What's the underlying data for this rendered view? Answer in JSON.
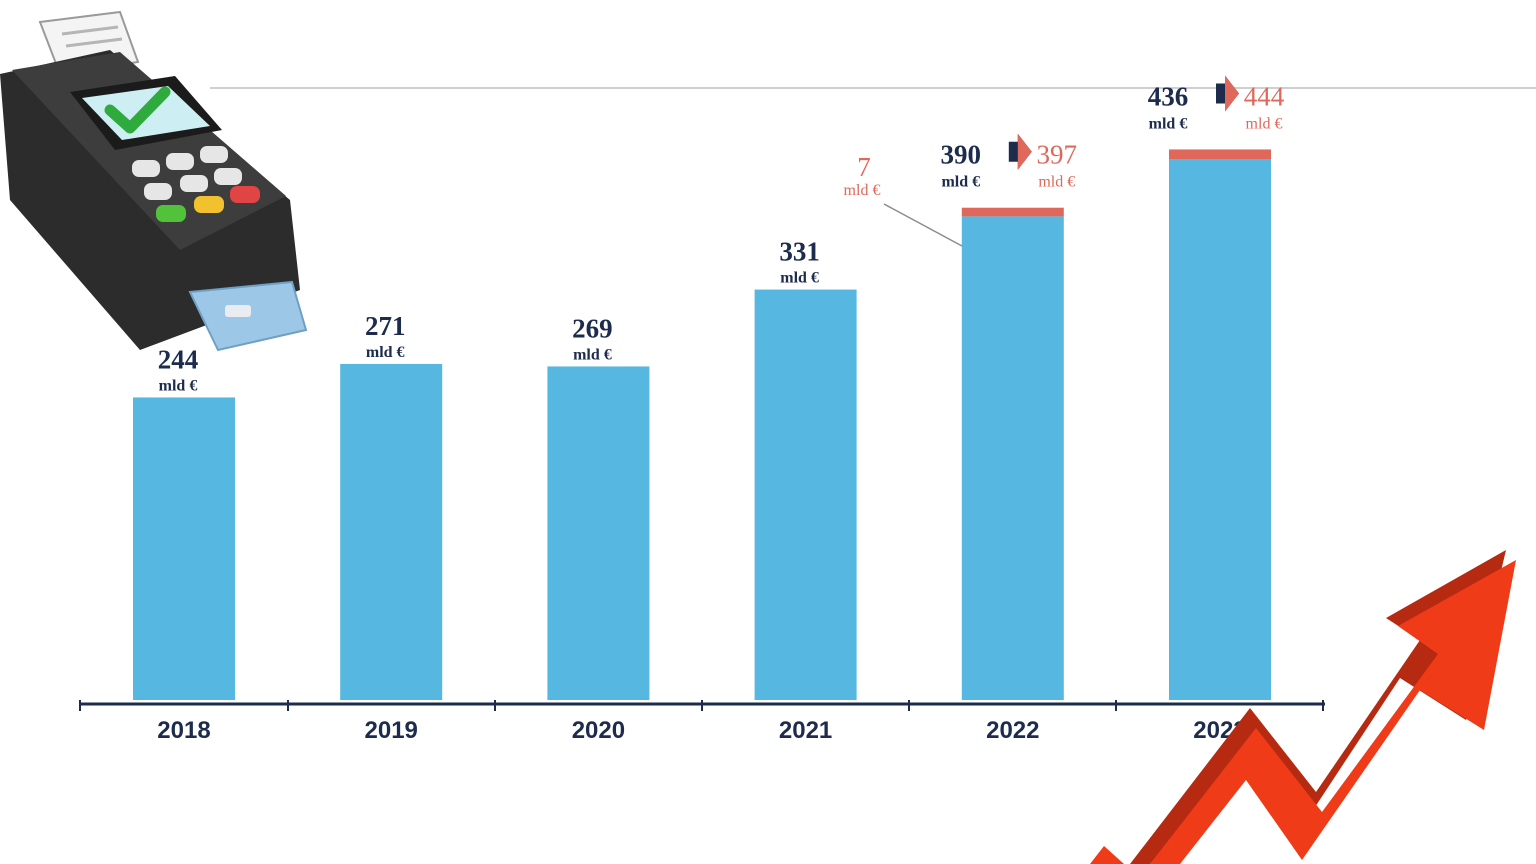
{
  "chart_data": {
    "type": "bar",
    "categories": [
      "2018",
      "2019",
      "2020",
      "2021",
      "2022",
      "2023"
    ],
    "series": [
      {
        "values": [
          244,
          271,
          269,
          331,
          390,
          436
        ],
        "color": "#56b8e0"
      },
      {
        "values": [
          0,
          0,
          0,
          0,
          7,
          8
        ],
        "color": "#e0685a"
      }
    ],
    "labels": [
      {
        "value": "244",
        "unit": "mld €"
      },
      {
        "value": "271",
        "unit": "mld €"
      },
      {
        "value": "269",
        "unit": "mld €"
      },
      {
        "value": "331",
        "unit": "mld €"
      },
      {
        "value": "390",
        "unit": "mld €",
        "total": "397",
        "total_unit": "mld €"
      },
      {
        "value": "436",
        "unit": "mld €",
        "total": "444",
        "total_unit": "mld €"
      }
    ],
    "annotation": {
      "value": "7",
      "unit": "mld €",
      "category": "2022"
    },
    "title": "",
    "xlabel": "",
    "ylabel": "",
    "ylim": [
      0,
      500
    ],
    "grid": false,
    "colors": {
      "base": "#56b8e0",
      "extra": "#e0685a",
      "text": "#1d2b4d",
      "axis": "#1d2b4d"
    }
  },
  "decorations": {
    "terminal_icon": "card-payment-terminal-icon",
    "growth_arrow_icon": "red-growth-arrow-icon"
  }
}
